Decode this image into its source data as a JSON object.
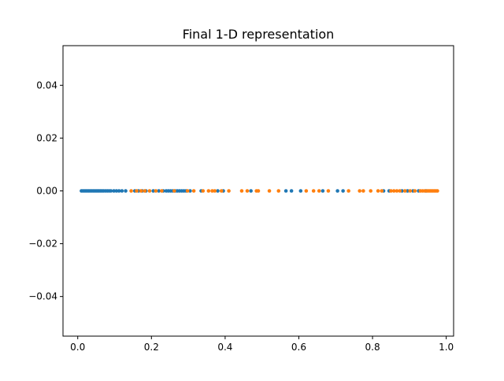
{
  "chart_data": {
    "type": "scatter",
    "title": "Final 1-D representation",
    "xlabel": "",
    "ylabel": "",
    "xlim": [
      -0.04,
      1.02
    ],
    "ylim": [
      -0.055,
      0.055
    ],
    "x_ticks": [
      0.0,
      0.2,
      0.4,
      0.6,
      0.8,
      1.0
    ],
    "x_tick_labels": [
      "0.0",
      "0.2",
      "0.4",
      "0.6",
      "0.8",
      "1.0"
    ],
    "y_ticks": [
      -0.04,
      -0.02,
      0.0,
      0.02,
      0.04
    ],
    "y_tick_labels": [
      "−0.04",
      "−0.02",
      "0.00",
      "0.02",
      "0.04"
    ],
    "grid": false,
    "legend": "none",
    "series": [
      {
        "color": "#1f77b4",
        "y_value": 0.0,
        "x": [
          0.01,
          0.014,
          0.018,
          0.022,
          0.026,
          0.03,
          0.034,
          0.038,
          0.042,
          0.046,
          0.05,
          0.054,
          0.058,
          0.062,
          0.066,
          0.07,
          0.075,
          0.08,
          0.085,
          0.09,
          0.098,
          0.105,
          0.112,
          0.12,
          0.13,
          0.155,
          0.165,
          0.175,
          0.185,
          0.205,
          0.22,
          0.232,
          0.24,
          0.246,
          0.252,
          0.258,
          0.264,
          0.27,
          0.276,
          0.282,
          0.288,
          0.294,
          0.305,
          0.335,
          0.38,
          0.395,
          0.47,
          0.565,
          0.58,
          0.605,
          0.665,
          0.705,
          0.72,
          0.83,
          0.845,
          0.88,
          0.895,
          0.91,
          0.925,
          0.945
        ]
      },
      {
        "color": "#ff7f0e",
        "y_value": 0.0,
        "x": [
          0.145,
          0.16,
          0.172,
          0.182,
          0.195,
          0.212,
          0.228,
          0.262,
          0.298,
          0.315,
          0.34,
          0.355,
          0.365,
          0.372,
          0.39,
          0.41,
          0.445,
          0.46,
          0.485,
          0.49,
          0.52,
          0.545,
          0.62,
          0.64,
          0.655,
          0.68,
          0.735,
          0.765,
          0.775,
          0.795,
          0.815,
          0.825,
          0.85,
          0.858,
          0.866,
          0.874,
          0.888,
          0.902,
          0.915,
          0.93,
          0.936,
          0.942,
          0.948,
          0.952,
          0.956,
          0.96,
          0.964,
          0.968,
          0.972,
          0.976
        ]
      }
    ]
  }
}
